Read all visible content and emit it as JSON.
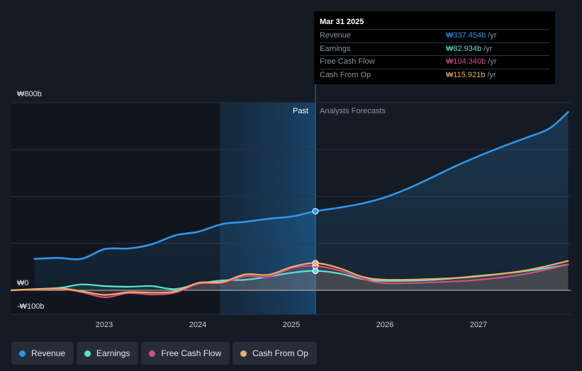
{
  "tooltip": {
    "date": "Mar 31 2025",
    "rows": [
      {
        "label": "Revenue",
        "value": "₩337.454b",
        "unit": "/yr",
        "color": "#2d97e8"
      },
      {
        "label": "Earnings",
        "value": "₩82.934b",
        "unit": "/yr",
        "color": "#5fe0d2"
      },
      {
        "label": "Free Cash Flow",
        "value": "₩104.340b",
        "unit": "/yr",
        "color": "#d54d8a"
      },
      {
        "label": "Cash From Op",
        "value": "₩115.921b",
        "unit": "/yr",
        "color": "#f0ae62"
      }
    ]
  },
  "labels": {
    "past": "Past",
    "forecast": "Analysts Forecasts"
  },
  "legend": [
    {
      "label": "Revenue",
      "color": "#2d97e8"
    },
    {
      "label": "Earnings",
      "color": "#5fe0d2"
    },
    {
      "label": "Free Cash Flow",
      "color": "#d54d8a"
    },
    {
      "label": "Cash From Op",
      "color": "#f0ae62"
    }
  ],
  "chart_data": {
    "type": "line",
    "title": "",
    "unit": "₩ billions",
    "ylim": [
      -100,
      800
    ],
    "y_ticks": [
      {
        "value": 800,
        "label": "₩800b"
      },
      {
        "value": 0,
        "label": "₩0"
      },
      {
        "value": -100,
        "label": "-₩100b"
      }
    ],
    "x_ticks": [
      {
        "value": 2023,
        "label": "2023"
      },
      {
        "value": 2024,
        "label": "2024"
      },
      {
        "value": 2025,
        "label": "2025"
      },
      {
        "value": 2026,
        "label": "2026"
      },
      {
        "value": 2027,
        "label": "2027"
      }
    ],
    "xlim": [
      2022.0,
      2028.0
    ],
    "past_start": 2024.23,
    "now": 2025.25,
    "series": [
      {
        "name": "Revenue",
        "color": "#2d97e8",
        "x": [
          2022.25,
          2022.5,
          2022.75,
          2023.0,
          2023.25,
          2023.5,
          2023.75,
          2024.0,
          2024.25,
          2024.5,
          2024.75,
          2025.0,
          2025.25,
          2025.5,
          2025.75,
          2026.0,
          2026.25,
          2026.5,
          2026.75,
          2027.0,
          2027.25,
          2027.5,
          2027.75,
          2027.95
        ],
        "y": [
          134,
          138,
          134,
          176,
          178,
          196,
          234,
          250,
          282,
          292,
          305,
          315,
          337,
          352,
          370,
          397,
          436,
          482,
          530,
          573,
          613,
          650,
          690,
          760
        ]
      },
      {
        "name": "Earnings",
        "color": "#5fe0d2",
        "x": [
          2022.0,
          2022.5,
          2022.75,
          2023.0,
          2023.25,
          2023.5,
          2023.75,
          2024.0,
          2024.25,
          2024.5,
          2024.75,
          2025.0,
          2025.25,
          2025.5,
          2025.75,
          2026.0,
          2026.5,
          2027.0,
          2027.5,
          2027.95
        ],
        "y": [
          0,
          10,
          25,
          18,
          15,
          18,
          5,
          28,
          42,
          45,
          58,
          75,
          83,
          72,
          48,
          40,
          44,
          62,
          82,
          110
        ]
      },
      {
        "name": "Free Cash Flow",
        "color": "#d54d8a",
        "x": [
          2022.0,
          2022.5,
          2022.75,
          2023.0,
          2023.25,
          2023.5,
          2023.75,
          2024.0,
          2024.25,
          2024.5,
          2024.75,
          2025.0,
          2025.25,
          2025.5,
          2025.75,
          2026.0,
          2026.5,
          2027.0,
          2027.5,
          2027.95
        ],
        "y": [
          0,
          5,
          -8,
          -30,
          -12,
          -18,
          -10,
          28,
          32,
          60,
          58,
          95,
          104,
          85,
          50,
          30,
          34,
          45,
          70,
          110
        ]
      },
      {
        "name": "Cash From Op",
        "color": "#f0ae62",
        "x": [
          2022.0,
          2022.5,
          2022.75,
          2023.0,
          2023.25,
          2023.5,
          2023.75,
          2024.0,
          2024.25,
          2024.5,
          2024.75,
          2025.0,
          2025.25,
          2025.5,
          2025.75,
          2026.0,
          2026.5,
          2027.0,
          2027.5,
          2027.95
        ],
        "y": [
          0,
          8,
          -4,
          -20,
          -8,
          -10,
          -5,
          32,
          35,
          68,
          66,
          100,
          116,
          95,
          58,
          45,
          48,
          60,
          85,
          125
        ]
      }
    ]
  }
}
